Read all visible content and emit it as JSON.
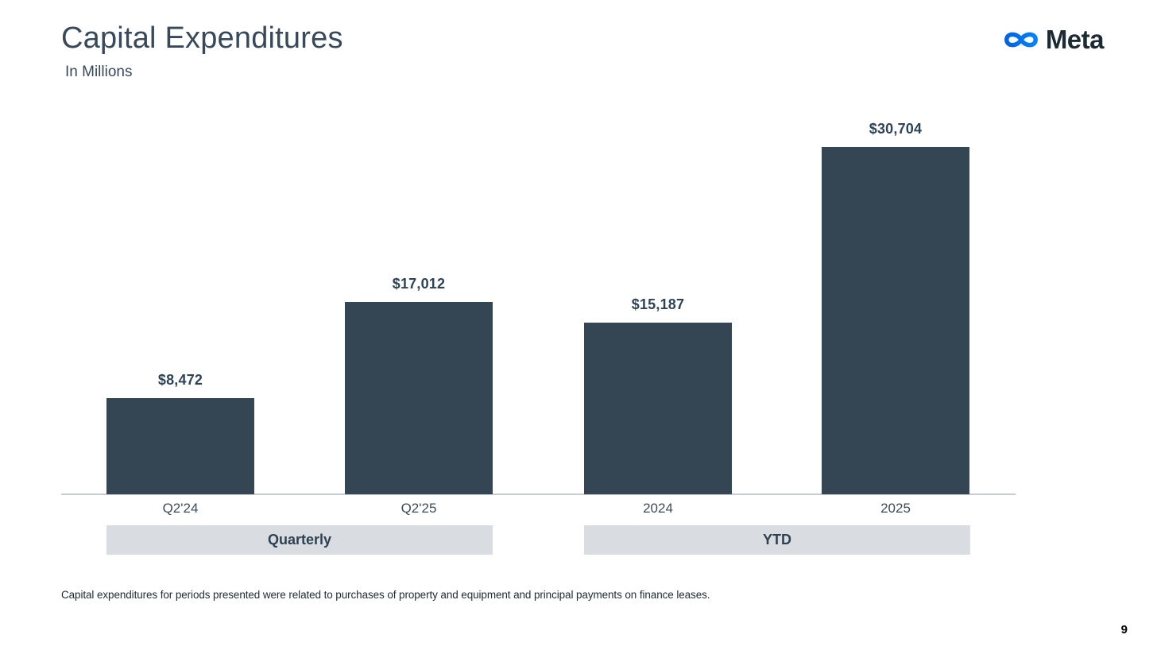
{
  "header": {
    "title": "Capital Expenditures",
    "subtitle": "In Millions",
    "logo_word": "Meta"
  },
  "colors": {
    "bar": "#344653",
    "value_label": "#2E4456",
    "band_bg": "#D9DDE2",
    "band_text": "#2E4150",
    "axis_line": "#C9CDD1",
    "title_text": "#37495A",
    "logo_blue_start": "#0064E0",
    "logo_blue_end": "#0082FB",
    "logo_word_color": "#1C2B33"
  },
  "chart_data": {
    "type": "bar",
    "title": "Capital Expenditures",
    "units": "In Millions (USD)",
    "categories": [
      "Q2'24",
      "Q2'25",
      "2024",
      "2025"
    ],
    "values": [
      8472,
      17012,
      15187,
      30704
    ],
    "value_labels": [
      "$8,472",
      "$17,012",
      "$15,187",
      "$30,704"
    ],
    "groups": [
      {
        "label": "Quarterly",
        "categories": [
          "Q2'24",
          "Q2'25"
        ],
        "values": [
          8472,
          17012
        ],
        "value_labels": [
          "$8,472",
          "$17,012"
        ]
      },
      {
        "label": "YTD",
        "categories": [
          "2024",
          "2025"
        ],
        "values": [
          15187,
          30704
        ],
        "value_labels": [
          "$15,187",
          "$30,704"
        ]
      }
    ],
    "ylim": [
      0,
      30704
    ],
    "xlabel": "",
    "ylabel": "",
    "gridlines": false,
    "legend": "none",
    "data_labels": "above bars"
  },
  "footnote": "Capital expenditures for periods presented were related to purchases of property and equipment and principal payments on finance leases.",
  "page_number": "9"
}
